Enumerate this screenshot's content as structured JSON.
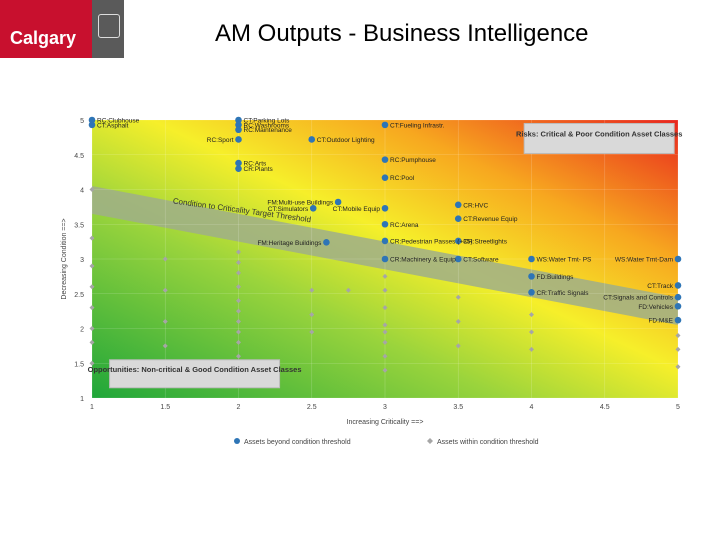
{
  "slide": {
    "title": "AM Outputs - Business Intelligence",
    "logo_text": "Calgary"
  },
  "colors": {
    "brand_red": "#c8102e",
    "dot_beyond": "#2e75b6",
    "dot_within": "#a6a6a6",
    "band": "#9fae8a"
  },
  "chart_data": {
    "type": "scatter",
    "title": "",
    "xlabel": "Increasing Criticality ==>",
    "ylabel": "Decreasing Condition ==>",
    "xlim": [
      1,
      5
    ],
    "ylim": [
      1,
      5
    ],
    "xticks": [
      "1",
      "1.5",
      "2",
      "2.5",
      "3",
      "3.5",
      "4",
      "4.5",
      "5"
    ],
    "yticks": [
      "1",
      "1.5",
      "2",
      "2.5",
      "3",
      "3.5",
      "4",
      "4.5",
      "5"
    ],
    "legend": [
      "Assets beyond condition threshold",
      "Assets within condition threshold"
    ],
    "legend_position": "bottom",
    "threshold_label": "Condition to Criticality Target Threshold",
    "risk_box": "Risks: Critical & Poor Condition Asset Classes",
    "opportunity_box": "Opportunities: Non-critical & Good Condition Asset Classes",
    "series": [
      {
        "name": "Assets beyond condition threshold",
        "points": [
          {
            "x": 1.0,
            "y": 5.0,
            "label": "RC:Clubhouse"
          },
          {
            "x": 1.0,
            "y": 4.93,
            "label": "CT:Asphalt"
          },
          {
            "x": 2.0,
            "y": 5.0,
            "label": "CT:Parking Lots"
          },
          {
            "x": 2.0,
            "y": 4.93,
            "label": "RC:Washrooms"
          },
          {
            "x": 2.0,
            "y": 4.86,
            "label": "RC:Maintenance"
          },
          {
            "x": 2.5,
            "y": 4.72,
            "label": "CT:Outdoor Lighting"
          },
          {
            "x": 2.0,
            "y": 4.72,
            "label": "RC:Sport"
          },
          {
            "x": 2.0,
            "y": 4.38,
            "label": "RC:Arts"
          },
          {
            "x": 2.0,
            "y": 4.3,
            "label": "CR:Plants"
          },
          {
            "x": 3.0,
            "y": 4.93,
            "label": "CT:Fueling Infrastr."
          },
          {
            "x": 3.0,
            "y": 4.43,
            "label": "RC:Pumphouse"
          },
          {
            "x": 3.0,
            "y": 4.17,
            "label": "RC:Pool"
          },
          {
            "x": 2.68,
            "y": 3.82,
            "label": "FM:Multi-use Buildings"
          },
          {
            "x": 2.51,
            "y": 3.73,
            "label": "CT:Simulators"
          },
          {
            "x": 3.0,
            "y": 3.73,
            "label": "CT:Mobile Equip"
          },
          {
            "x": 3.5,
            "y": 3.78,
            "label": "CR:HVC"
          },
          {
            "x": 3.5,
            "y": 3.58,
            "label": "CT:Revenue Equip"
          },
          {
            "x": 3.0,
            "y": 3.5,
            "label": "RC:Arena"
          },
          {
            "x": 3.0,
            "y": 3.26,
            "label": "CR:Pedestrian Passes (+35)"
          },
          {
            "x": 2.6,
            "y": 3.24,
            "label": "FM:Heritage Buildings"
          },
          {
            "x": 3.5,
            "y": 3.26,
            "label": "CR:Streetlights"
          },
          {
            "x": 3.0,
            "y": 3.0,
            "label": "CR:Machinery & Equip"
          },
          {
            "x": 3.5,
            "y": 3.0,
            "label": "CT:Software"
          },
          {
            "x": 4.0,
            "y": 3.0,
            "label": "WS:Water Tmt- PS"
          },
          {
            "x": 5.0,
            "y": 3.0,
            "label": "WS:Water Tmt-Dam"
          },
          {
            "x": 4.0,
            "y": 2.75,
            "label": "FD:Buildings"
          },
          {
            "x": 4.0,
            "y": 2.52,
            "label": "CR:Traffic Signals"
          },
          {
            "x": 5.0,
            "y": 2.62,
            "label": "CT:Track"
          },
          {
            "x": 5.0,
            "y": 2.45,
            "label": "CT:Signals and Controls"
          },
          {
            "x": 5.0,
            "y": 2.32,
            "label": "FD:Vehicles"
          },
          {
            "x": 5.0,
            "y": 2.12,
            "label": "FD:M&E"
          }
        ]
      },
      {
        "name": "Assets within condition threshold",
        "points": [
          {
            "x": 1.0,
            "y": 4.0
          },
          {
            "x": 1.0,
            "y": 3.3
          },
          {
            "x": 1.0,
            "y": 2.9
          },
          {
            "x": 1.0,
            "y": 2.6
          },
          {
            "x": 1.0,
            "y": 2.3
          },
          {
            "x": 1.0,
            "y": 2.0
          },
          {
            "x": 1.0,
            "y": 1.8
          },
          {
            "x": 1.0,
            "y": 1.5
          },
          {
            "x": 1.5,
            "y": 3.0
          },
          {
            "x": 1.5,
            "y": 2.55
          },
          {
            "x": 1.5,
            "y": 2.1
          },
          {
            "x": 1.5,
            "y": 1.75
          },
          {
            "x": 2.0,
            "y": 3.1
          },
          {
            "x": 2.0,
            "y": 2.95
          },
          {
            "x": 2.0,
            "y": 2.8
          },
          {
            "x": 2.0,
            "y": 2.6
          },
          {
            "x": 2.0,
            "y": 2.4
          },
          {
            "x": 2.0,
            "y": 2.25
          },
          {
            "x": 2.0,
            "y": 2.1
          },
          {
            "x": 2.0,
            "y": 1.95
          },
          {
            "x": 2.0,
            "y": 1.8
          },
          {
            "x": 2.0,
            "y": 1.6
          },
          {
            "x": 2.5,
            "y": 2.55
          },
          {
            "x": 2.5,
            "y": 2.2
          },
          {
            "x": 2.5,
            "y": 1.95
          },
          {
            "x": 2.75,
            "y": 2.55
          },
          {
            "x": 3.0,
            "y": 2.75
          },
          {
            "x": 3.0,
            "y": 2.55
          },
          {
            "x": 3.0,
            "y": 2.3
          },
          {
            "x": 3.0,
            "y": 2.05
          },
          {
            "x": 3.0,
            "y": 1.95
          },
          {
            "x": 3.0,
            "y": 1.8
          },
          {
            "x": 3.0,
            "y": 1.6
          },
          {
            "x": 3.0,
            "y": 1.4
          },
          {
            "x": 3.5,
            "y": 2.45
          },
          {
            "x": 3.5,
            "y": 2.1
          },
          {
            "x": 3.5,
            "y": 1.75
          },
          {
            "x": 4.0,
            "y": 2.2
          },
          {
            "x": 4.0,
            "y": 1.95
          },
          {
            "x": 4.0,
            "y": 1.7
          },
          {
            "x": 5.0,
            "y": 1.9
          },
          {
            "x": 5.0,
            "y": 1.7
          },
          {
            "x": 5.0,
            "y": 1.45
          }
        ]
      }
    ]
  }
}
